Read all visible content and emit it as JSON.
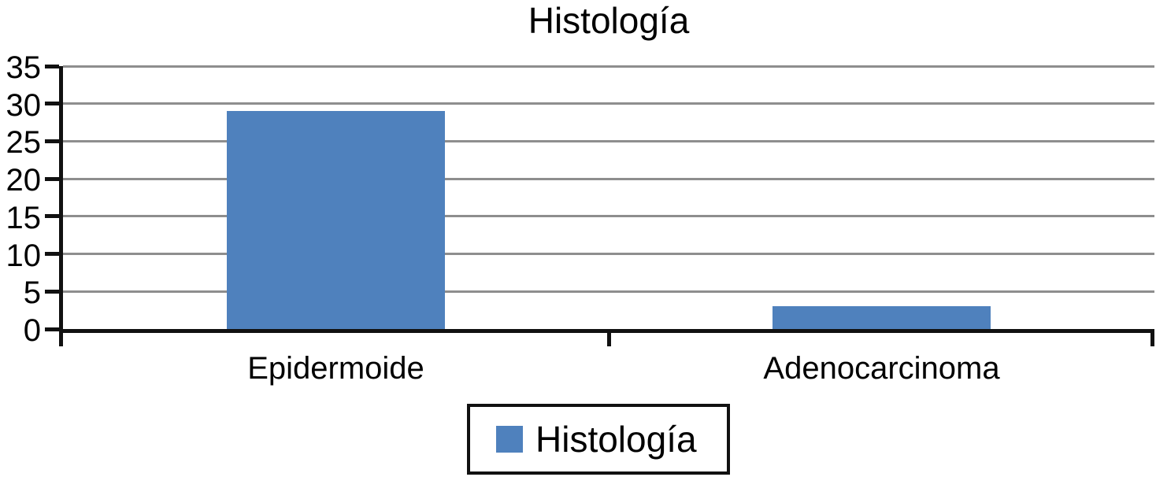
{
  "chart_data": {
    "type": "bar",
    "title": "Histología",
    "series_name": "Histología",
    "categories": [
      "Epidermoide",
      "Adenocarcinoma"
    ],
    "values": [
      29,
      3
    ],
    "xlabel": "",
    "ylabel": "",
    "ylim": [
      0,
      35
    ],
    "yticks": [
      0,
      5,
      10,
      15,
      20,
      25,
      30,
      35
    ],
    "grid": true,
    "legend_position": "bottom",
    "bar_color": "#4f81bd",
    "gridline_color": "#8e8e8e",
    "axis_color": "#111111",
    "text_color": "#000000"
  }
}
